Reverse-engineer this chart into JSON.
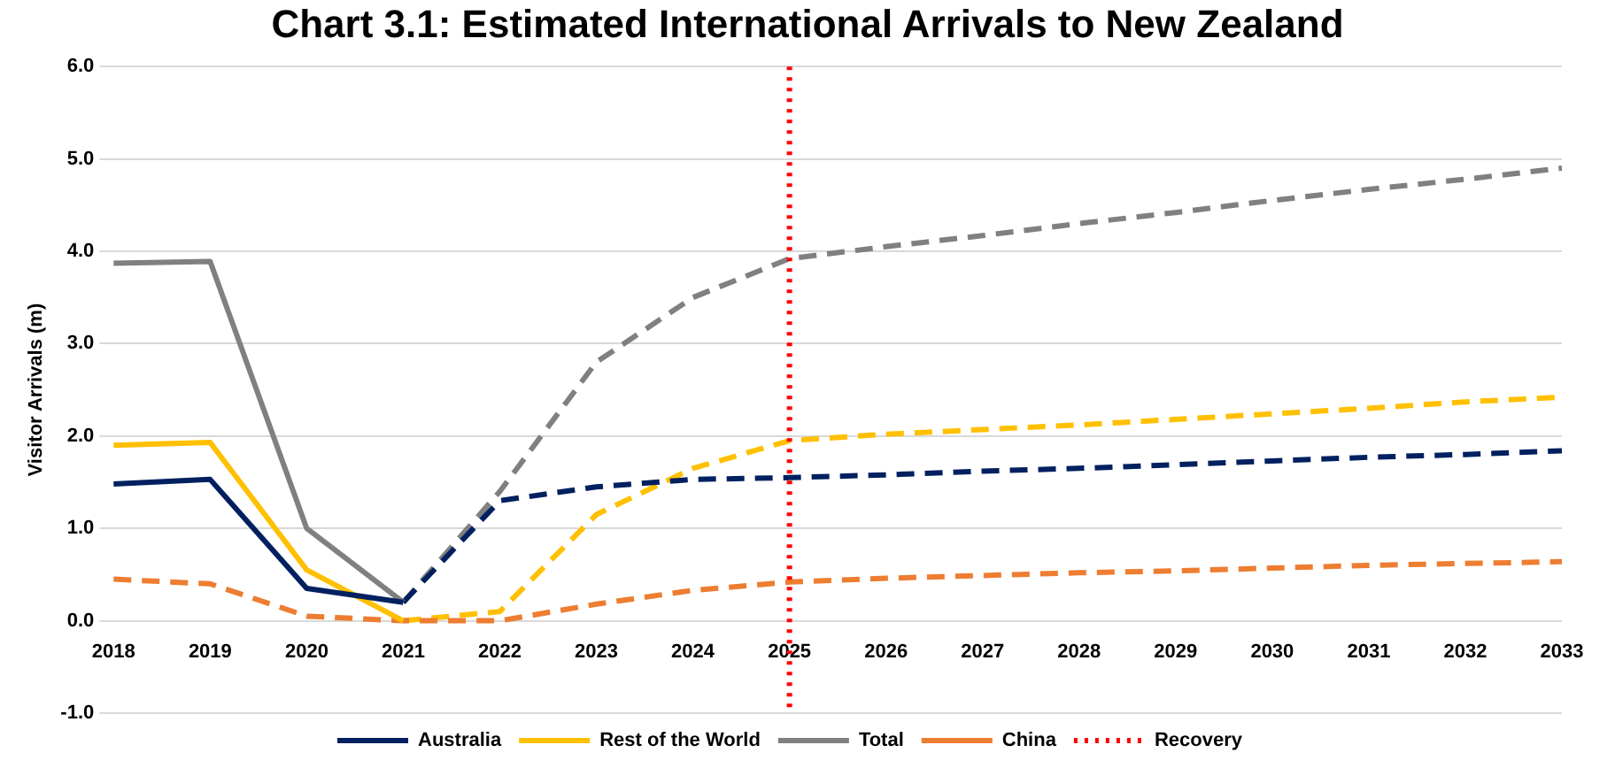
{
  "chart_data": {
    "type": "line",
    "title": "Chart 3.1: Estimated International Arrivals to New Zealand",
    "ylabel": "Visitor Arrivals (m)",
    "categories": [
      "2018",
      "2019",
      "2020",
      "2021",
      "2022",
      "2023",
      "2024",
      "2025",
      "2026",
      "2027",
      "2028",
      "2029",
      "2030",
      "2031",
      "2032",
      "2033"
    ],
    "series": [
      {
        "name": "Australia",
        "color": "#002060",
        "line_style": "solid",
        "values": [
          1.48,
          1.53,
          0.35,
          0.2,
          null,
          null,
          null,
          null,
          null,
          null,
          null,
          null,
          null,
          null,
          null,
          null
        ]
      },
      {
        "name": "Rest of the World",
        "color": "#ffc000",
        "line_style": "solid",
        "values": [
          1.9,
          1.93,
          0.55,
          0.0,
          null,
          null,
          null,
          null,
          null,
          null,
          null,
          null,
          null,
          null,
          null,
          null
        ]
      },
      {
        "name": "Total",
        "color": "#808080",
        "line_style": "solid",
        "values": [
          3.87,
          3.89,
          1.0,
          0.2,
          null,
          null,
          null,
          null,
          null,
          null,
          null,
          null,
          null,
          null,
          null,
          null
        ]
      },
      {
        "name": "China",
        "color": "#ed7d31",
        "line_style": "dashed",
        "values": [
          0.45,
          0.4,
          0.05,
          0.0,
          0.0,
          0.18,
          0.33,
          0.42,
          0.46,
          0.49,
          0.52,
          0.54,
          0.57,
          0.6,
          0.62,
          0.64
        ]
      },
      {
        "color": "#002060",
        "line_style": "dashed",
        "values": [
          null,
          null,
          null,
          0.2,
          1.3,
          1.45,
          1.53,
          1.55,
          1.58,
          1.62,
          1.65,
          1.69,
          1.73,
          1.77,
          1.8,
          1.84
        ]
      },
      {
        "color": "#ffc000",
        "line_style": "dashed",
        "values": [
          null,
          null,
          null,
          0.0,
          0.1,
          1.15,
          1.65,
          1.95,
          2.02,
          2.07,
          2.12,
          2.18,
          2.24,
          2.3,
          2.37,
          2.42
        ]
      },
      {
        "color": "#808080",
        "line_style": "dashed",
        "values": [
          null,
          null,
          null,
          0.2,
          1.4,
          2.8,
          3.5,
          3.92,
          4.05,
          4.17,
          4.3,
          4.42,
          4.55,
          4.67,
          4.78,
          4.9
        ]
      }
    ],
    "ref_lines": [
      {
        "axis": "x",
        "value": "2025",
        "label": "Recovery",
        "color": "#ff0000",
        "line_style": "dotted"
      }
    ],
    "ylim": [
      -1,
      6
    ],
    "yticks": [
      {
        "value": -1,
        "label": "-1.0"
      },
      {
        "value": 0,
        "label": "0.0"
      },
      {
        "value": 1,
        "label": "1.0"
      },
      {
        "value": 2,
        "label": "2.0"
      },
      {
        "value": 3,
        "label": "3.0"
      },
      {
        "value": 4,
        "label": "4.0"
      },
      {
        "value": 5,
        "label": "5.0"
      },
      {
        "value": 6,
        "label": "6.0"
      }
    ],
    "grid": "y",
    "legend": "bottom",
    "marker": "none"
  }
}
